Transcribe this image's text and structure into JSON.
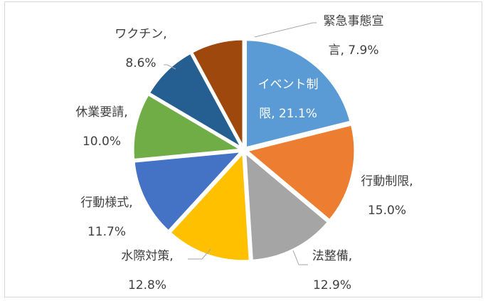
{
  "chart_data": {
    "type": "pie",
    "title": "",
    "legend": "none",
    "slices": [
      {
        "category": "イベント制限",
        "value": 21.1,
        "label_lines": [
          "イベント制",
          "限, 21.1%"
        ],
        "color": "#5b9bd5",
        "label_inside": true
      },
      {
        "category": "行動制限",
        "value": 15.0,
        "label_lines": [
          "行動制限,",
          "15.0%"
        ],
        "color": "#ed7d31",
        "label_inside": false
      },
      {
        "category": "法整備",
        "value": 12.9,
        "label_lines": [
          "法整備,",
          "12.9%"
        ],
        "color": "#a5a5a5",
        "label_inside": false
      },
      {
        "category": "水際対策",
        "value": 12.8,
        "label_lines": [
          "水際対策,",
          "12.8%"
        ],
        "color": "#ffc000",
        "label_inside": false
      },
      {
        "category": "行動様式",
        "value": 11.7,
        "label_lines": [
          "行動様式,",
          "11.7%"
        ],
        "color": "#4472c4",
        "label_inside": false
      },
      {
        "category": "休業要請",
        "value": 10.0,
        "label_lines": [
          "休業要請,",
          "10.0%"
        ],
        "color": "#70ad47",
        "label_inside": false
      },
      {
        "category": "ワクチン",
        "value": 8.6,
        "label_lines": [
          "ワクチン,",
          "8.6%"
        ],
        "color": "#255e91",
        "label_inside": false
      },
      {
        "category": "緊急事態宣言",
        "value": 7.9,
        "label_lines": [
          "緊急事態宣",
          "言, 7.9%"
        ],
        "color": "#9e480e",
        "label_inside": false
      }
    ]
  }
}
